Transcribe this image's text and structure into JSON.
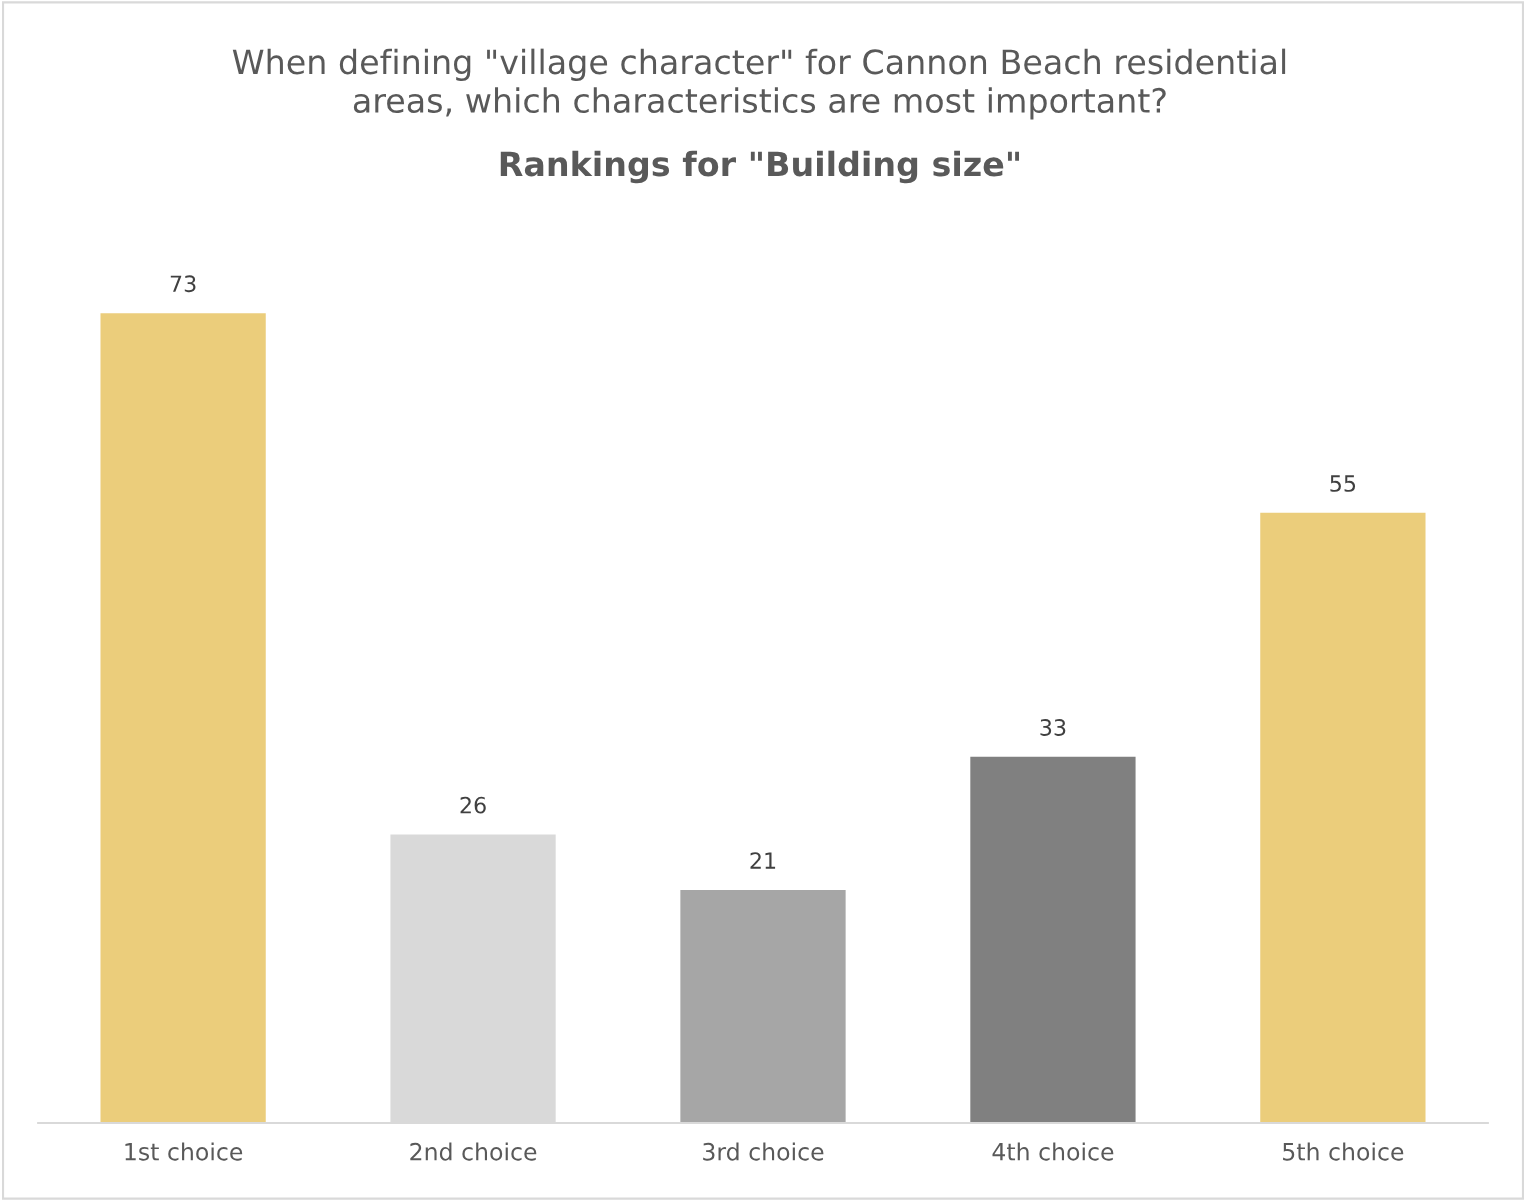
{
  "chart_data": {
    "type": "bar",
    "title": "When defining \"village character\" for Cannon Beach residential\nareas, which characteristics are most important?",
    "subtitle": "Rankings for \"Building size\"",
    "categories": [
      "1st choice",
      "2nd choice",
      "3rd choice",
      "4th choice",
      "5th choice"
    ],
    "values": [
      73,
      26,
      21,
      33,
      55
    ],
    "colors": [
      "#ebcd7b",
      "#d9d9d9",
      "#a6a6a6",
      "#808080",
      "#ebcd7b"
    ],
    "data_labels": true,
    "grid": false,
    "legend": false
  }
}
